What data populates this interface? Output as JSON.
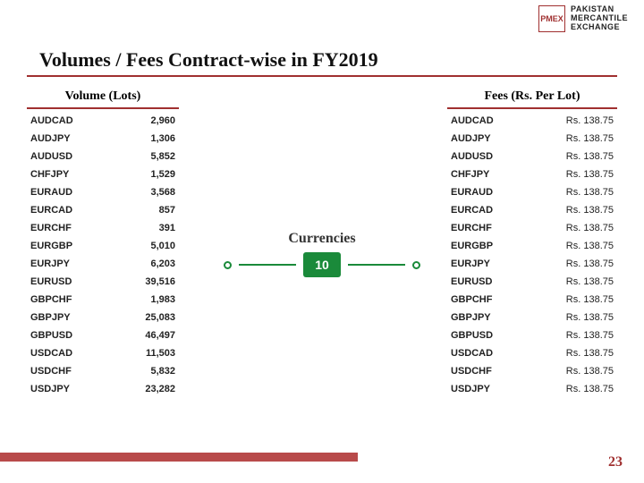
{
  "logo": {
    "badge": "PMEX",
    "line1": "PAKISTAN",
    "line2": "MERCANTILE",
    "line3": "EXCHANGE"
  },
  "title": "Volumes / Fees Contract-wise in FY2019",
  "volume_header": "Volume (Lots)",
  "fees_header": "Fees (Rs. Per Lot)",
  "center": {
    "label": "Currencies",
    "count": "10"
  },
  "page_number": "23",
  "volumes": [
    {
      "pair": "AUDCAD",
      "value": "2,960"
    },
    {
      "pair": "AUDJPY",
      "value": "1,306"
    },
    {
      "pair": "AUDUSD",
      "value": "5,852"
    },
    {
      "pair": "CHFJPY",
      "value": "1,529"
    },
    {
      "pair": "EURAUD",
      "value": "3,568"
    },
    {
      "pair": "EURCAD",
      "value": "857"
    },
    {
      "pair": "EURCHF",
      "value": "391"
    },
    {
      "pair": "EURGBP",
      "value": "5,010"
    },
    {
      "pair": "EURJPY",
      "value": "6,203"
    },
    {
      "pair": "EURUSD",
      "value": "39,516"
    },
    {
      "pair": "GBPCHF",
      "value": "1,983"
    },
    {
      "pair": "GBPJPY",
      "value": "25,083"
    },
    {
      "pair": "GBPUSD",
      "value": "46,497"
    },
    {
      "pair": "USDCAD",
      "value": "11,503"
    },
    {
      "pair": "USDCHF",
      "value": "5,832"
    },
    {
      "pair": "USDJPY",
      "value": "23,282"
    }
  ],
  "fees": [
    {
      "pair": "AUDCAD",
      "value": "Rs. 138.75"
    },
    {
      "pair": "AUDJPY",
      "value": "Rs. 138.75"
    },
    {
      "pair": "AUDUSD",
      "value": "Rs. 138.75"
    },
    {
      "pair": "CHFJPY",
      "value": "Rs. 138.75"
    },
    {
      "pair": "EURAUD",
      "value": "Rs. 138.75"
    },
    {
      "pair": "EURCAD",
      "value": "Rs. 138.75"
    },
    {
      "pair": "EURCHF",
      "value": "Rs. 138.75"
    },
    {
      "pair": "EURGBP",
      "value": "Rs. 138.75"
    },
    {
      "pair": "EURJPY",
      "value": "Rs. 138.75"
    },
    {
      "pair": "EURUSD",
      "value": "Rs. 138.75"
    },
    {
      "pair": "GBPCHF",
      "value": "Rs. 138.75"
    },
    {
      "pair": "GBPJPY",
      "value": "Rs. 138.75"
    },
    {
      "pair": "GBPUSD",
      "value": "Rs. 138.75"
    },
    {
      "pair": "USDCAD",
      "value": "Rs. 138.75"
    },
    {
      "pair": "USDCHF",
      "value": "Rs. 138.75"
    },
    {
      "pair": "USDJPY",
      "value": "Rs. 138.75"
    }
  ]
}
